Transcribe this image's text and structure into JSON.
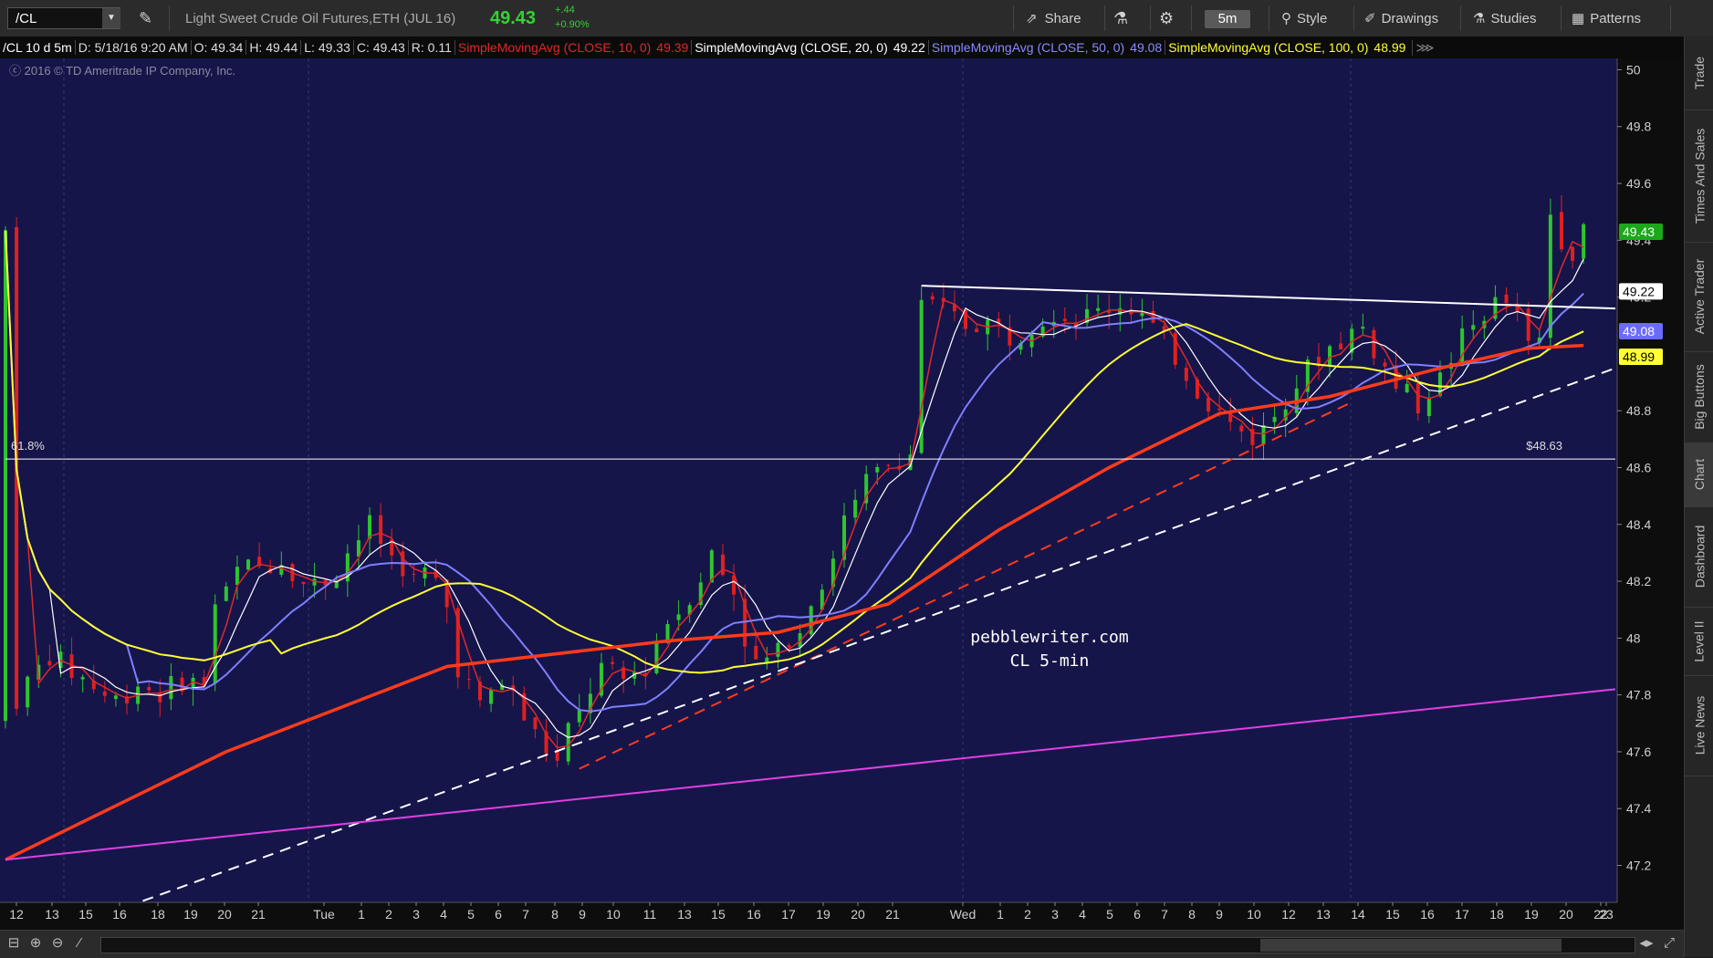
{
  "toolbar": {
    "symbol": "/CL",
    "description": "Light Sweet Crude Oil Futures,ETH (JUL 16)",
    "last_price": "49.43",
    "change": "+.44",
    "change_pct": "+0.90%",
    "share_label": "Share",
    "timeframe": "5m",
    "style_label": "Style",
    "drawings_label": "Drawings",
    "studies_label": "Studies",
    "patterns_label": "Patterns"
  },
  "studybar": {
    "symbol_period": "/CL 10 d 5m",
    "date": "D: 5/18/16 9:20 AM",
    "open": "O: 49.34",
    "high": "H: 49.44",
    "low": "L: 49.33",
    "close": "C: 49.43",
    "range": "R: 0.11",
    "sma10_label": "SimpleMovingAvg (CLOSE, 10, 0)",
    "sma10_value": "49.39",
    "sma20_label": "SimpleMovingAvg (CLOSE, 20, 0)",
    "sma20_value": "49.22",
    "sma50_label": "SimpleMovingAvg (CLOSE, 50, 0)",
    "sma50_value": "49.08",
    "sma100_label": "SimpleMovingAvg (CLOSE, 100, 0)",
    "sma100_value": "48.99"
  },
  "colors": {
    "background": "#15154a",
    "up_candle": "#2ec52e",
    "down_candle": "#e02020",
    "sma10": "#e02828",
    "sma20": "#ffffff",
    "sma50": "#7f7fff",
    "sma100": "#ffff33",
    "sma200": "#ff3b1a",
    "trendline_magenta": "#e040e0"
  },
  "sidebar": {
    "tabs": [
      "Trade",
      "Times And Sales",
      "Active Trader",
      "Big Buttons",
      "Chart",
      "Dashboard",
      "Level II",
      "Live News"
    ]
  },
  "chart_data": {
    "type": "candlestick",
    "copyright": "2016 © TD Ameritrade IP Company, Inc.",
    "annotation": [
      "pebblewriter.com",
      "CL 5-min"
    ],
    "fib_label": "61.8%",
    "fib_value_label": "$48.63",
    "fib_level": 48.63,
    "ylim": [
      47.07,
      50.04
    ],
    "y_ticks": [
      "50",
      "49.8",
      "49.6",
      "49.4",
      "49.2",
      "48.8",
      "48.6",
      "48.4",
      "48.2",
      "48",
      "47.8",
      "47.6",
      "47.4",
      "47.2"
    ],
    "price_badges": [
      {
        "value": "49.43",
        "series": "last"
      },
      {
        "value": "49.22",
        "series": "sma20"
      },
      {
        "value": "49.08",
        "series": "sma50"
      },
      {
        "value": "48.99",
        "series": "sma100"
      }
    ],
    "x_ticks": [
      "12",
      "13",
      "15",
      "16",
      "18",
      "19",
      "20",
      "21",
      "Tue",
      "1",
      "2",
      "3",
      "4",
      "5",
      "6",
      "7",
      "8",
      "9",
      "10",
      "11",
      "13",
      "15",
      "16",
      "17",
      "19",
      "20",
      "21",
      "Wed",
      "1",
      "2",
      "3",
      "4",
      "5",
      "6",
      "7",
      "8",
      "9",
      "10",
      "12",
      "13",
      "14",
      "15",
      "16",
      "17",
      "18",
      "19",
      "20",
      "22",
      "23"
    ],
    "price_path": [
      [
        0,
        47.72
      ],
      [
        2,
        47.85
      ],
      [
        4,
        47.95
      ],
      [
        6,
        47.88
      ],
      [
        8,
        47.83
      ],
      [
        10,
        47.78
      ],
      [
        12,
        47.85
      ],
      [
        14,
        47.8
      ],
      [
        16,
        47.85
      ],
      [
        18,
        47.84
      ],
      [
        19,
        48.1
      ],
      [
        21,
        48.25
      ],
      [
        23,
        48.25
      ],
      [
        25,
        48.28
      ],
      [
        27,
        48.18
      ],
      [
        29,
        48.2
      ],
      [
        31,
        48.3
      ],
      [
        33,
        48.4
      ],
      [
        35,
        48.3
      ],
      [
        37,
        48.2
      ],
      [
        39,
        48.25
      ],
      [
        41,
        47.9
      ],
      [
        43,
        47.75
      ],
      [
        45,
        47.85
      ],
      [
        47,
        47.7
      ],
      [
        49,
        47.6
      ],
      [
        50,
        47.55
      ],
      [
        52,
        47.75
      ],
      [
        54,
        47.9
      ],
      [
        56,
        47.85
      ],
      [
        58,
        47.9
      ],
      [
        60,
        48.05
      ],
      [
        62,
        48.15
      ],
      [
        64,
        48.3
      ],
      [
        66,
        48.15
      ],
      [
        68,
        47.9
      ],
      [
        70,
        47.95
      ],
      [
        72,
        48.05
      ],
      [
        74,
        48.2
      ],
      [
        76,
        48.4
      ],
      [
        78,
        48.55
      ],
      [
        80,
        48.62
      ],
      [
        82,
        48.65
      ],
      [
        83,
        49.2
      ],
      [
        85,
        49.15
      ],
      [
        87,
        49.1
      ],
      [
        89,
        49.12
      ],
      [
        91,
        49.05
      ],
      [
        93,
        49.1
      ],
      [
        95,
        49.15
      ],
      [
        97,
        49.12
      ],
      [
        99,
        49.15
      ],
      [
        101,
        49.18
      ],
      [
        103,
        49.15
      ],
      [
        105,
        49.05
      ],
      [
        107,
        48.92
      ],
      [
        109,
        48.82
      ],
      [
        111,
        48.75
      ],
      [
        113,
        48.7
      ],
      [
        115,
        48.78
      ],
      [
        117,
        48.88
      ],
      [
        119,
        49.0
      ],
      [
        121,
        49.05
      ],
      [
        123,
        49.12
      ],
      [
        124,
        49.0
      ],
      [
        126,
        48.88
      ],
      [
        128,
        48.82
      ],
      [
        130,
        48.9
      ],
      [
        132,
        49.05
      ],
      [
        134,
        49.15
      ],
      [
        136,
        49.2
      ],
      [
        138,
        49.0
      ],
      [
        139,
        49.05
      ],
      [
        140,
        49.5
      ],
      [
        142,
        49.35
      ],
      [
        143,
        49.43
      ]
    ],
    "candle_count": 144,
    "series": [
      {
        "name": "SimpleMovingAvg (CLOSE, 10, 0)",
        "last": 49.39
      },
      {
        "name": "SimpleMovingAvg (CLOSE, 20, 0)",
        "last": 49.22
      },
      {
        "name": "SimpleMovingAvg (CLOSE, 50, 0)",
        "last": 49.08
      },
      {
        "name": "SimpleMovingAvg (CLOSE, 100, 0)",
        "last": 48.99
      }
    ],
    "sma200_path": [
      [
        0,
        47.22
      ],
      [
        20,
        47.6
      ],
      [
        40,
        47.9
      ],
      [
        60,
        47.99
      ],
      [
        70,
        48.02
      ],
      [
        80,
        48.12
      ],
      [
        90,
        48.38
      ],
      [
        100,
        48.6
      ],
      [
        110,
        48.79
      ],
      [
        120,
        48.85
      ],
      [
        130,
        48.95
      ],
      [
        138,
        49.02
      ],
      [
        143,
        49.03
      ]
    ],
    "trendlines": [
      {
        "kind": "resistance",
        "color": "#ffffff",
        "from": [
          83,
          49.24
        ],
        "to": [
          157,
          49.16
        ],
        "dash": false
      },
      {
        "kind": "support",
        "color": "#ff3b1a",
        "from": [
          52,
          47.54
        ],
        "to": [
          122,
          48.83
        ],
        "dash": true
      },
      {
        "kind": "long_support",
        "color": "#ffffff",
        "from": [
          0,
          46.9
        ],
        "to": [
          190,
          48.95
        ],
        "dash": true
      },
      {
        "kind": "long_trend",
        "color": "#e040e0",
        "from": [
          0,
          47.22
        ],
        "to": [
          190,
          47.82
        ],
        "dash": false
      }
    ]
  }
}
